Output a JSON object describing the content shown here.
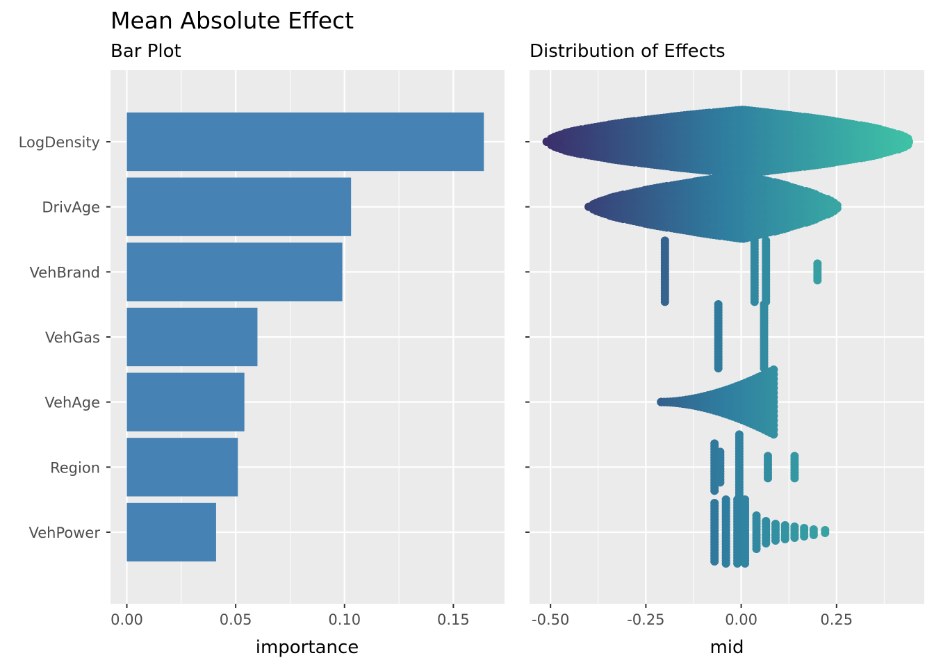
{
  "figure": {
    "title": "Mean Absolute Effect"
  },
  "chart_data": [
    {
      "type": "bar",
      "orientation": "horizontal",
      "subtitle": "Bar Plot",
      "xlabel": "importance",
      "ylabel": "",
      "xlim": [
        -0.0075,
        0.1735
      ],
      "xticks": [
        0.0,
        0.05,
        0.1,
        0.15
      ],
      "xtick_labels": [
        "0.00",
        "0.05",
        "0.10",
        "0.15"
      ],
      "grid": true,
      "bar_color": "#4682b4",
      "categories": [
        "LogDensity",
        "DrivAge",
        "VehBrand",
        "VehGas",
        "VehAge",
        "Region",
        "VehPower"
      ],
      "values": [
        0.164,
        0.103,
        0.099,
        0.06,
        0.054,
        0.051,
        0.041
      ]
    },
    {
      "type": "beeswarm",
      "subtitle": "Distribution of Effects",
      "xlabel": "mid",
      "ylabel": "",
      "xlim": [
        -0.555,
        0.48
      ],
      "xticks": [
        -0.5,
        -0.25,
        0.0,
        0.25
      ],
      "xtick_labels": [
        "-0.50",
        "-0.25",
        "0.00",
        "0.25"
      ],
      "grid": true,
      "color_scale": {
        "low": "#3b2f6b",
        "mid": "#2f7ea0",
        "high": "#3fc1a6",
        "domain": [
          -0.51,
          0.44
        ]
      },
      "categories": [
        "LogDensity",
        "DrivAge",
        "VehBrand",
        "VehGas",
        "VehAge",
        "Region",
        "VehPower"
      ],
      "series": [
        {
          "name": "LogDensity",
          "kind": "continuous",
          "range": [
            -0.51,
            0.44
          ],
          "outliers": [
            -0.51,
            -0.48,
            0.42,
            0.44
          ]
        },
        {
          "name": "DrivAge",
          "kind": "continuous",
          "range": [
            -0.4,
            0.25
          ]
        },
        {
          "name": "VehBrand",
          "kind": "discrete",
          "levels": [
            -0.2,
            0.035,
            0.065,
            0.2
          ]
        },
        {
          "name": "VehGas",
          "kind": "discrete",
          "levels": [
            -0.06,
            0.06
          ]
        },
        {
          "name": "VehAge",
          "kind": "continuous",
          "range": [
            -0.21,
            0.09
          ]
        },
        {
          "name": "Region",
          "kind": "discrete",
          "levels": [
            -0.07,
            -0.055,
            -0.005,
            0.07,
            0.14
          ]
        },
        {
          "name": "VehPower",
          "kind": "discrete",
          "levels": [
            -0.07,
            -0.04,
            -0.01,
            0.01,
            0.04,
            0.065,
            0.09,
            0.115,
            0.14,
            0.165,
            0.19,
            0.22
          ]
        }
      ]
    }
  ]
}
